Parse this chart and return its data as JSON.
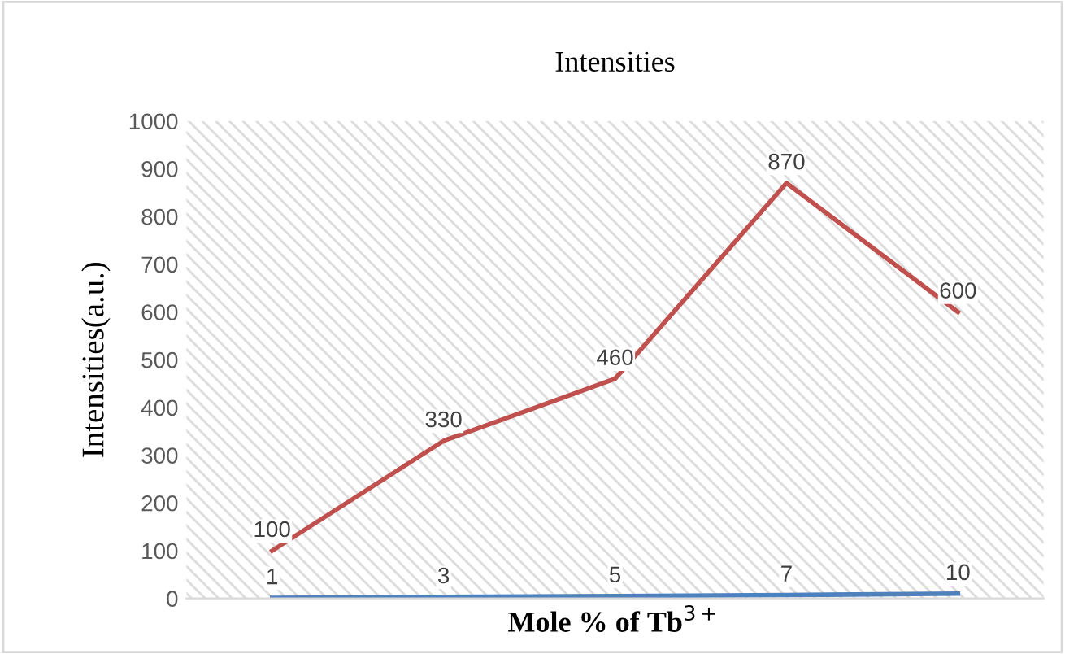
{
  "chart_data": {
    "type": "line",
    "title": "Intensities",
    "xlabel": "Mole % of Tb$^{3+}$",
    "ylabel": "Intensities(a.u.)",
    "categories": [
      null,
      null,
      null,
      null,
      null
    ],
    "series": [
      {
        "color": "#c0504d",
        "values": [
          100,
          330,
          460,
          870,
          600
        ]
      },
      {
        "color": "#4f81bd",
        "values": [
          1,
          3,
          5,
          7,
          10
        ]
      }
    ],
    "ylim": [
      0,
      1000
    ],
    "yticks": [
      0,
      100,
      200,
      300,
      400,
      500,
      600,
      700,
      800,
      900,
      1000
    ],
    "grid": false,
    "legend": false,
    "marker": "none",
    "line_style": "solid",
    "data_labels": true
  }
}
